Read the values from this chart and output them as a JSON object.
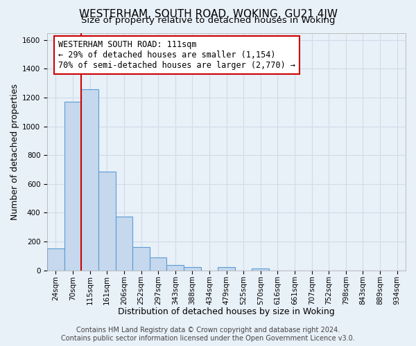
{
  "title": "WESTERHAM, SOUTH ROAD, WOKING, GU21 4JW",
  "subtitle": "Size of property relative to detached houses in Woking",
  "xlabel": "Distribution of detached houses by size in Woking",
  "ylabel": "Number of detached properties",
  "footer_line1": "Contains HM Land Registry data © Crown copyright and database right 2024.",
  "footer_line2": "Contains public sector information licensed under the Open Government Licence v3.0.",
  "bin_labels": [
    "24sqm",
    "70sqm",
    "115sqm",
    "161sqm",
    "206sqm",
    "252sqm",
    "297sqm",
    "343sqm",
    "388sqm",
    "434sqm",
    "479sqm",
    "525sqm",
    "570sqm",
    "616sqm",
    "661sqm",
    "707sqm",
    "752sqm",
    "798sqm",
    "843sqm",
    "889sqm",
    "934sqm"
  ],
  "bar_values": [
    150,
    1170,
    1260,
    685,
    375,
    160,
    90,
    35,
    22,
    0,
    20,
    0,
    10,
    0,
    0,
    0,
    0,
    0,
    0,
    0,
    0
  ],
  "bar_color": "#c5d8ed",
  "bar_edge_color": "#5b9bd5",
  "annotation_title": "WESTERHAM SOUTH ROAD: 111sqm",
  "annotation_line1": "← 29% of detached houses are smaller (1,154)",
  "annotation_line2": "70% of semi-detached houses are larger (2,770) →",
  "annotation_box_color": "#ffffff",
  "annotation_box_edge_color": "#cc0000",
  "red_line_color": "#cc0000",
  "red_line_x": 1.5,
  "ylim": [
    0,
    1650
  ],
  "yticks": [
    0,
    200,
    400,
    600,
    800,
    1000,
    1200,
    1400,
    1600
  ],
  "background_color": "#e8f0f8",
  "plot_background": "#e8f0f8",
  "grid_color": "#d0dce8",
  "title_fontsize": 11,
  "subtitle_fontsize": 9.5,
  "axis_label_fontsize": 9,
  "tick_fontsize": 7.5,
  "annotation_fontsize": 8.5,
  "footer_fontsize": 7
}
